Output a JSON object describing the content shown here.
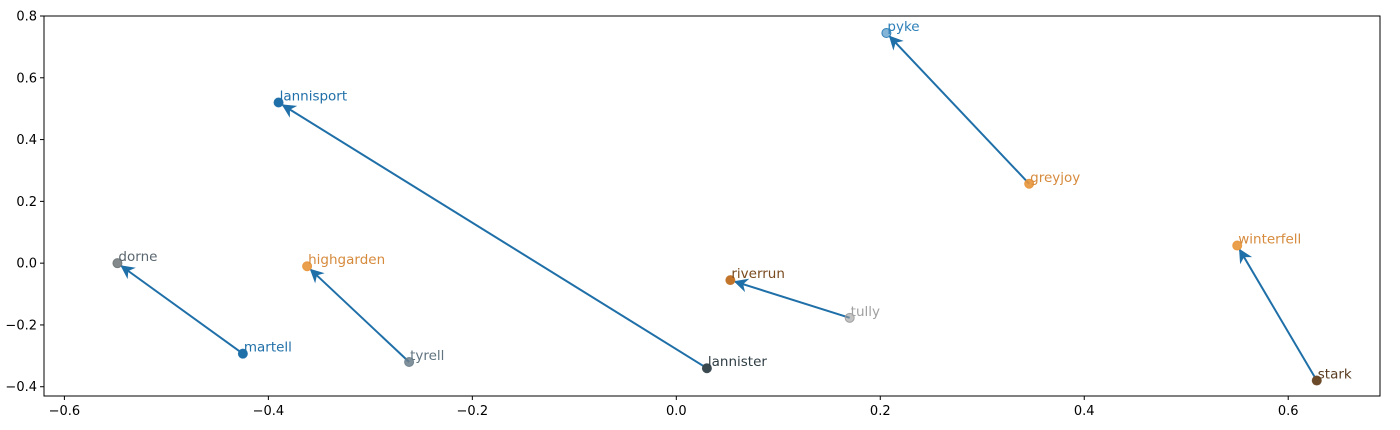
{
  "chart_data": {
    "type": "scatter",
    "title": "",
    "xlabel": "",
    "ylabel": "",
    "xlim": [
      -0.62,
      0.69
    ],
    "ylim": [
      -0.43,
      0.8
    ],
    "xticks": [
      -0.6,
      -0.4,
      -0.2,
      0.0,
      0.2,
      0.4,
      0.6
    ],
    "xtick_labels": [
      "−0.6",
      "−0.4",
      "−0.2",
      "0.0",
      "0.2",
      "0.4",
      "0.6"
    ],
    "yticks": [
      -0.4,
      -0.2,
      0.0,
      0.2,
      0.4,
      0.6,
      0.8
    ],
    "ytick_labels": [
      "−0.4",
      "−0.2",
      "0.0",
      "0.2",
      "0.4",
      "0.6",
      "0.8"
    ],
    "grid": false,
    "points": [
      {
        "label": "pyke",
        "x": 0.206,
        "y": 0.745,
        "color": "#1f77b4",
        "label_color": "#2c7fb8",
        "alpha": 0.55
      },
      {
        "label": "lannisport",
        "x": -0.39,
        "y": 0.52,
        "color": "#1f6fa8",
        "label_color": "#1f6fa8",
        "alpha": 1.0
      },
      {
        "label": "greyjoy",
        "x": 0.346,
        "y": 0.257,
        "color": "#e8953a",
        "label_color": "#d68a3c",
        "alpha": 0.9
      },
      {
        "label": "winterfell",
        "x": 0.55,
        "y": 0.057,
        "color": "#e8953a",
        "label_color": "#d68a3c",
        "alpha": 0.9
      },
      {
        "label": "dorne",
        "x": -0.548,
        "y": 0.0,
        "color": "#6f7678",
        "label_color": "#5a6770",
        "alpha": 0.85
      },
      {
        "label": "highgarden",
        "x": -0.362,
        "y": -0.01,
        "color": "#e8953a",
        "label_color": "#d68a3c",
        "alpha": 0.9
      },
      {
        "label": "riverrun",
        "x": 0.053,
        "y": -0.055,
        "color": "#c1742a",
        "label_color": "#7a4a1e",
        "alpha": 1.0
      },
      {
        "label": "tully",
        "x": 0.17,
        "y": -0.177,
        "color": "#9a9a9a",
        "label_color": "#a0a0a0",
        "alpha": 0.6
      },
      {
        "label": "martell",
        "x": -0.425,
        "y": -0.293,
        "color": "#1f6fa8",
        "label_color": "#1f6fa8",
        "alpha": 1.0
      },
      {
        "label": "tyrell",
        "x": -0.262,
        "y": -0.32,
        "color": "#6c7f8c",
        "label_color": "#607480",
        "alpha": 0.85
      },
      {
        "label": "lannister",
        "x": 0.03,
        "y": -0.34,
        "color": "#3a4850",
        "label_color": "#2f3d44",
        "alpha": 1.0
      },
      {
        "label": "stark",
        "x": 0.628,
        "y": -0.38,
        "color": "#6b4a2a",
        "label_color": "#5a3d22",
        "alpha": 1.0
      }
    ],
    "arrows": [
      {
        "from": "greyjoy",
        "to": "pyke"
      },
      {
        "from": "lannister",
        "to": "lannisport"
      },
      {
        "from": "martell",
        "to": "dorne"
      },
      {
        "from": "tyrell",
        "to": "highgarden"
      },
      {
        "from": "tully",
        "to": "riverrun"
      },
      {
        "from": "stark",
        "to": "winterfell"
      }
    ],
    "arrow_color": "#1f6fa8"
  }
}
